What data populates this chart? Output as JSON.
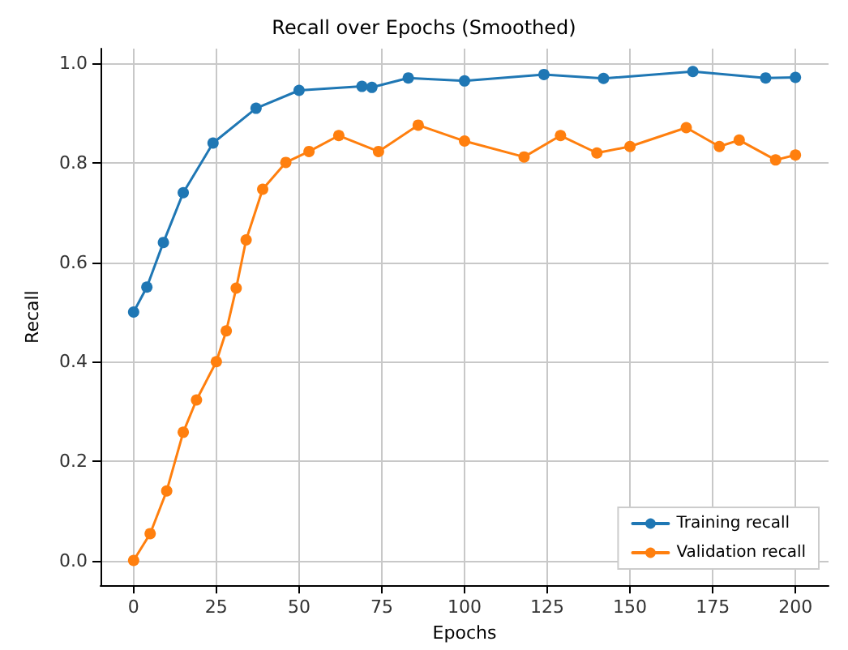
{
  "chart_data": {
    "type": "line",
    "title": "Recall over Epochs (Smoothed)",
    "xlabel": "Epochs",
    "ylabel": "Recall",
    "xlim": [
      -10,
      210
    ],
    "xticks": [
      0,
      25,
      50,
      75,
      100,
      125,
      150,
      175,
      200
    ],
    "ylim": [
      -0.05,
      1.03
    ],
    "yticks": [
      {
        "value": 0,
        "label": "0.0"
      },
      {
        "value": 0.2,
        "label": "0.2"
      },
      {
        "value": 0.4,
        "label": "0.4"
      },
      {
        "value": 0.6,
        "label": "0.6"
      },
      {
        "value": 0.8,
        "label": "0.8"
      },
      {
        "value": 1,
        "label": "1.0"
      }
    ],
    "grid": true,
    "legend": "bottom right",
    "marker": "circle",
    "line_style": "solid",
    "series": [
      {
        "name": "Training recall",
        "color": "#1f77b4",
        "x": [
          0,
          4,
          9,
          15,
          24,
          37,
          50,
          69,
          72,
          83,
          100,
          124,
          142,
          169,
          191,
          200
        ],
        "values": [
          0.5,
          0.55,
          0.64,
          0.74,
          0.84,
          0.91,
          0.946,
          0.954,
          0.952,
          0.971,
          0.965,
          0.978,
          0.97,
          0.984,
          0.971,
          0.972
        ]
      },
      {
        "name": "Validation recall",
        "color": "#ff7f0e",
        "x": [
          0,
          5,
          10,
          15,
          19,
          25,
          28,
          31,
          34,
          39,
          46,
          53,
          62,
          74,
          86,
          100,
          118,
          129,
          140,
          150,
          167,
          177,
          183,
          194,
          200
        ],
        "values": [
          0,
          0.054,
          0.14,
          0.258,
          0.323,
          0.4,
          0.462,
          0.548,
          0.645,
          0.747,
          0.801,
          0.823,
          0.855,
          0.823,
          0.876,
          0.844,
          0.812,
          0.855,
          0.82,
          0.833,
          0.871,
          0.833,
          0.846,
          0.806,
          0.816
        ]
      }
    ]
  }
}
